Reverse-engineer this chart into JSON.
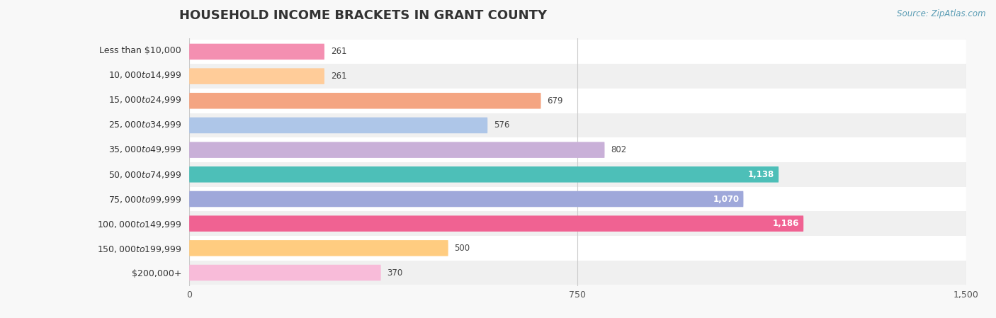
{
  "title": "HOUSEHOLD INCOME BRACKETS IN GRANT COUNTY",
  "source": "Source: ZipAtlas.com",
  "categories": [
    "Less than $10,000",
    "$10,000 to $14,999",
    "$15,000 to $24,999",
    "$25,000 to $34,999",
    "$35,000 to $49,999",
    "$50,000 to $74,999",
    "$75,000 to $99,999",
    "$100,000 to $149,999",
    "$150,000 to $199,999",
    "$200,000+"
  ],
  "values": [
    261,
    261,
    679,
    576,
    802,
    1138,
    1070,
    1186,
    500,
    370
  ],
  "bar_colors": [
    "#F48FB1",
    "#FFCC99",
    "#F4A582",
    "#AEC6E8",
    "#C9B0D8",
    "#4DBFB8",
    "#9FA8DA",
    "#F06292",
    "#FFCC80",
    "#F8BBD9"
  ],
  "xlim": [
    0,
    1500
  ],
  "xticks": [
    0,
    750,
    1500
  ],
  "bg_row_even": "#ffffff",
  "bg_row_odd": "#f0f0f0",
  "title_fontsize": 13,
  "label_fontsize": 9,
  "value_fontsize": 8.5,
  "source_fontsize": 8.5,
  "bar_height": 0.65
}
